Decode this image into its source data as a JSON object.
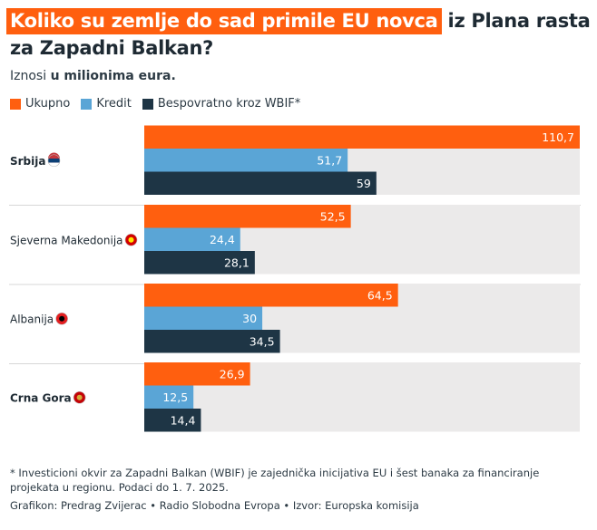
{
  "title_highlight": "Koliko su zemlje do sad primile EU novca",
  "title_rest": " iz Plana rasta za Zapadni Balkan?",
  "subtitle_prefix": "Iznosi ",
  "subtitle_bold": "u milionima eura.",
  "colors": {
    "ukupno": "#ff5f0f",
    "kredit": "#5aa5d6",
    "bespovratno": "#1e3545",
    "track": "#ebeaea"
  },
  "chart_data": {
    "type": "bar",
    "orientation": "horizontal",
    "categories": [
      "Srbija",
      "Sjeverna Makedonija",
      "Albanija",
      "Crna Gora"
    ],
    "bold_categories": [
      "Srbija",
      "Crna Gora"
    ],
    "flag_icons": [
      "serbia-flag-icon",
      "north-macedonia-flag-icon",
      "albania-flag-icon",
      "montenegro-flag-icon"
    ],
    "series": [
      {
        "name": "Ukupno",
        "values": [
          110.7,
          52.5,
          64.5,
          26.9
        ],
        "labels": [
          "110,7",
          "52,5",
          "64,5",
          "26,9"
        ]
      },
      {
        "name": "Kredit",
        "values": [
          51.7,
          24.4,
          30,
          12.5
        ],
        "labels": [
          "51,7",
          "24,4",
          "30",
          "12,5"
        ]
      },
      {
        "name": "Bespovratno kroz WBIF*",
        "values": [
          59,
          28.1,
          34.5,
          14.4
        ],
        "labels": [
          "59",
          "28,1",
          "34,5",
          "14,4"
        ]
      }
    ],
    "xlim": [
      0,
      110.7
    ],
    "grid": false,
    "legend_position": "top-left"
  },
  "footnote": "* Investicioni okvir za Zapadni Balkan (WBIF) je zajednička inicijativa EU i šest banaka za financiranje projekata u regionu. Podaci do 1. 7. 2025.",
  "credits": "Grafikon: Predrag Zvijerac • Radio Slobodna Evropa • Izvor: Europska komisija"
}
